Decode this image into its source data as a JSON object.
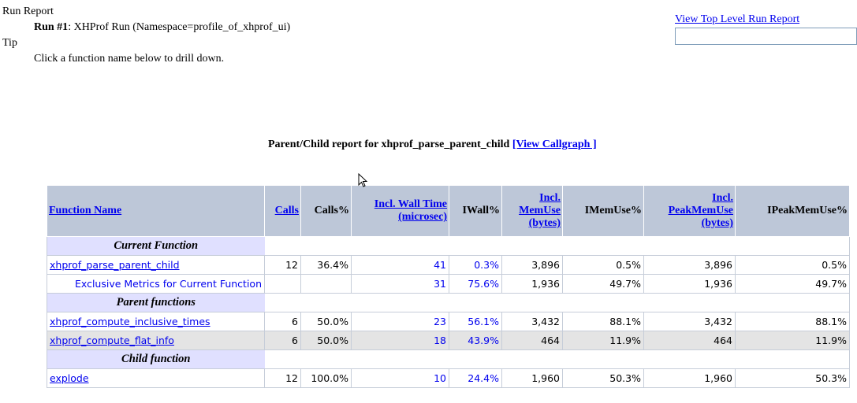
{
  "header": {
    "run_report": "Run Report",
    "run_label": "Run #1",
    "run_desc": ": XHProf Run (Namespace=profile_of_xhprof_ui)",
    "tip": "Tip",
    "tip_text": "Click a function name below to drill down.",
    "top_link": "View Top Level Run Report",
    "search_value": ""
  },
  "report": {
    "title": "Parent/Child report for xhprof_parse_parent_child",
    "callgraph_link": "[View Callgraph ]"
  },
  "columns": [
    "Function Name",
    "Calls",
    "Calls%",
    "Incl. Wall Time (microsec)",
    "IWall%",
    "Incl. MemUse (bytes)",
    "IMemUse%",
    "Incl. PeakMemUse (bytes)",
    "IPeakMemUse%"
  ],
  "sections": {
    "current": "Current Function",
    "parents": "Parent functions",
    "children": "Child function"
  },
  "current": {
    "name": "xhprof_parse_parent_child",
    "calls": "12",
    "calls_pct": "36.4%",
    "wall": "41",
    "wall_pct": "0.3%",
    "mem": "3,896",
    "mem_pct": "0.5%",
    "peak": "3,896",
    "peak_pct": "0.5%"
  },
  "exclusive": {
    "name": "Exclusive Metrics for Current Function",
    "wall": "31",
    "wall_pct": "75.6%",
    "mem": "1,936",
    "mem_pct": "49.7%",
    "peak": "1,936",
    "peak_pct": "49.7%"
  },
  "parents": [
    {
      "name": "xhprof_compute_inclusive_times",
      "calls": "6",
      "calls_pct": "50.0%",
      "wall": "23",
      "wall_pct": "56.1%",
      "mem": "3,432",
      "mem_pct": "88.1%",
      "peak": "3,432",
      "peak_pct": "88.1%"
    },
    {
      "name": "xhprof_compute_flat_info",
      "calls": "6",
      "calls_pct": "50.0%",
      "wall": "18",
      "wall_pct": "43.9%",
      "mem": "464",
      "mem_pct": "11.9%",
      "peak": "464",
      "peak_pct": "11.9%"
    }
  ],
  "children": [
    {
      "name": "explode",
      "calls": "12",
      "calls_pct": "100.0%",
      "wall": "10",
      "wall_pct": "24.4%",
      "mem": "1,960",
      "mem_pct": "50.3%",
      "peak": "1,960",
      "peak_pct": "50.3%"
    }
  ]
}
